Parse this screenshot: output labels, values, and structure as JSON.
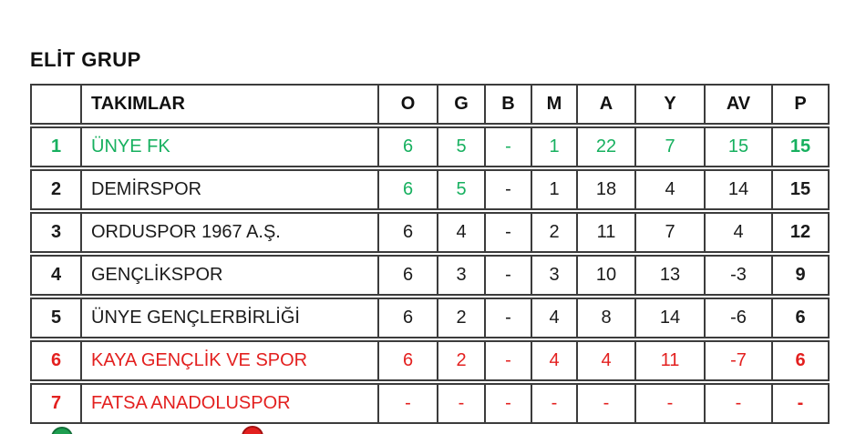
{
  "title": "ELİT GRUP",
  "colors": {
    "green_text": "#17b05f",
    "red_text": "#e3201f",
    "black_text": "#1b1b1b",
    "table_border": "#3c3c3c",
    "marker_green": "#1e9e50",
    "marker_red": "#e3201f"
  },
  "table": {
    "columns": [
      {
        "label": ""
      },
      {
        "label": "TAKIMLAR"
      },
      {
        "label": "O"
      },
      {
        "label": "G"
      },
      {
        "label": "B"
      },
      {
        "label": "M"
      },
      {
        "label": "A"
      },
      {
        "label": "Y"
      },
      {
        "label": "AV"
      },
      {
        "label": "P"
      }
    ],
    "rows": [
      {
        "rank": "1",
        "team": "ÜNYE FK",
        "values": [
          "6",
          "5",
          "-",
          "1",
          "22",
          "7",
          "15",
          "15"
        ],
        "rank_color": "green",
        "team_color": "green",
        "value_colors": [
          "green",
          "green",
          "green",
          "green",
          "green",
          "green",
          "green",
          "green"
        ]
      },
      {
        "rank": "2",
        "team": "DEMİRSPOR",
        "values": [
          "6",
          "5",
          "-",
          "1",
          "18",
          "4",
          "14",
          "15"
        ],
        "rank_color": "black",
        "team_color": "black",
        "value_colors": [
          "green",
          "green",
          "black",
          "black",
          "black",
          "black",
          "black",
          "black"
        ]
      },
      {
        "rank": "3",
        "team": "ORDUSPOR 1967 A.Ş.",
        "values": [
          "6",
          "4",
          "-",
          "2",
          "11",
          "7",
          "4",
          "12"
        ],
        "rank_color": "black",
        "team_color": "black",
        "value_colors": [
          "black",
          "black",
          "black",
          "black",
          "black",
          "black",
          "black",
          "black"
        ]
      },
      {
        "rank": "4",
        "team": "GENÇLİKSPOR",
        "values": [
          "6",
          "3",
          "-",
          "3",
          "10",
          "13",
          "-3",
          "9"
        ],
        "rank_color": "black",
        "team_color": "black",
        "value_colors": [
          "black",
          "black",
          "black",
          "black",
          "black",
          "black",
          "black",
          "black"
        ]
      },
      {
        "rank": "5",
        "team": "ÜNYE GENÇLERBİRLİĞİ",
        "values": [
          "6",
          "2",
          "-",
          "4",
          "8",
          "14",
          "-6",
          "6"
        ],
        "rank_color": "black",
        "team_color": "black",
        "value_colors": [
          "black",
          "black",
          "black",
          "black",
          "black",
          "black",
          "black",
          "black"
        ]
      },
      {
        "rank": "6",
        "team": "KAYA GENÇLİK VE SPOR",
        "values": [
          "6",
          "2",
          "-",
          "4",
          "4",
          "11",
          "-7",
          "6"
        ],
        "rank_color": "red",
        "team_color": "red",
        "value_colors": [
          "red",
          "red",
          "red",
          "red",
          "red",
          "red",
          "red",
          "red"
        ]
      },
      {
        "rank": "7",
        "team": "FATSA ANADOLUSPOR",
        "values": [
          "-",
          "-",
          "-",
          "-",
          "-",
          "-",
          "-",
          "-"
        ],
        "rank_color": "red",
        "team_color": "red",
        "value_colors": [
          "red",
          "red",
          "red",
          "red",
          "red",
          "red",
          "red",
          "red"
        ]
      }
    ]
  }
}
